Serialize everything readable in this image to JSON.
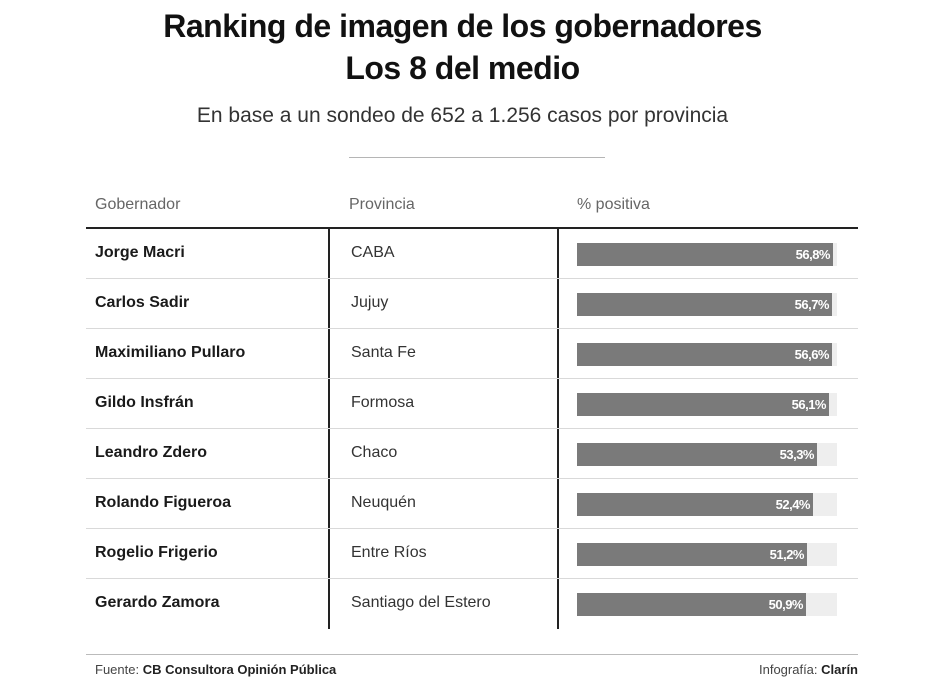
{
  "chart_data": {
    "type": "table",
    "title": "Ranking de imagen de los gobernadores",
    "title_line2": "Los 8 del medio",
    "subtitle": "En base a un sondeo de 652 a 1.256 casos por provincia",
    "columns": [
      "Gobernador",
      "Provincia",
      "% positiva"
    ],
    "rows": [
      {
        "gobernador": "Jorge Macri",
        "provincia": "CABA",
        "value": 56.8,
        "label": "56,8%"
      },
      {
        "gobernador": "Carlos Sadir",
        "provincia": "Jujuy",
        "value": 56.7,
        "label": "56,7%"
      },
      {
        "gobernador": "Maximiliano Pullaro",
        "provincia": "Santa Fe",
        "value": 56.6,
        "label": "56,6%"
      },
      {
        "gobernador": "Gildo Insfrán",
        "provincia": "Formosa",
        "value": 56.1,
        "label": "56,1%"
      },
      {
        "gobernador": "Leandro Zdero",
        "provincia": "Chaco",
        "value": 53.3,
        "label": "53,3%"
      },
      {
        "gobernador": "Rolando Figueroa",
        "provincia": "Neuquén",
        "value": 52.4,
        "label": "52,4%"
      },
      {
        "gobernador": "Rogelio Frigerio",
        "provincia": "Entre Ríos",
        "value": 51.2,
        "label": "51,2%"
      },
      {
        "gobernador": "Gerardo Zamora",
        "provincia": "Santiago del Estero",
        "value": 50.9,
        "label": "50,9%"
      }
    ],
    "bar_color": "#7a7a7a",
    "track_color": "#eeeeee",
    "value_max": 57.8
  },
  "footer": {
    "source_label": "Fuente:",
    "source": "CB Consultora Opinión Pública",
    "credit_label": "Infografía:",
    "credit": "Clarín"
  }
}
